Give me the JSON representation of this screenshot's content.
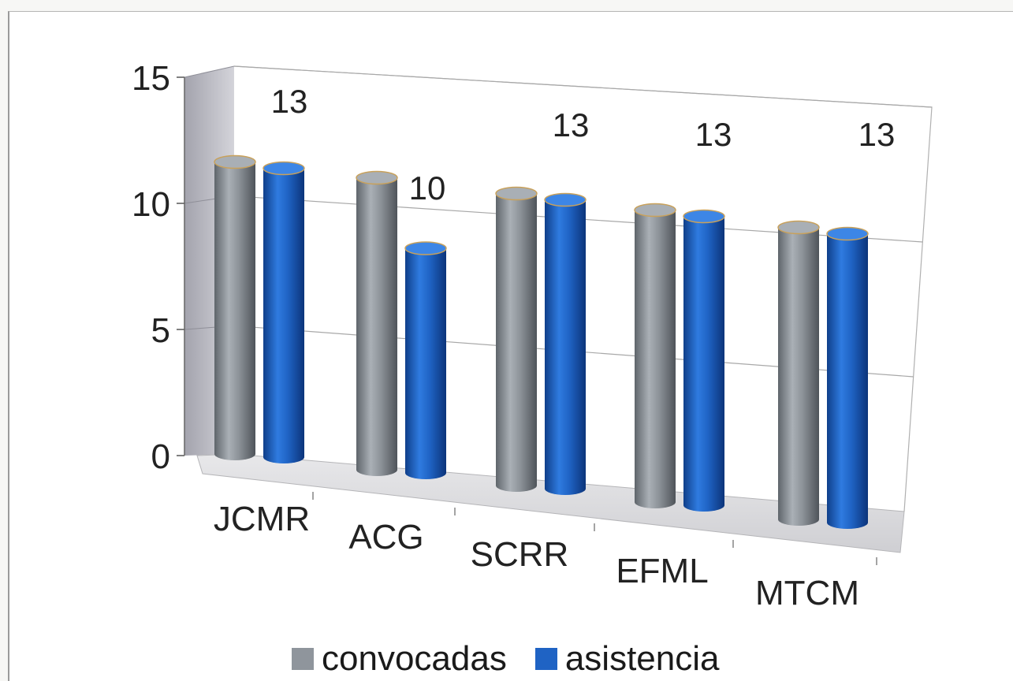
{
  "chart_data": {
    "type": "bar",
    "style": "3d-cylinder",
    "categories": [
      "JCMR",
      "ACG",
      "SCRR",
      "EFML",
      "MTCM"
    ],
    "series": [
      {
        "name": "convocadas",
        "color": "#8f959c",
        "values": [
          13,
          13,
          13,
          13,
          13
        ]
      },
      {
        "name": "asistencia",
        "color": "#1f63c4",
        "values": [
          13,
          10,
          13,
          13,
          13
        ]
      }
    ],
    "data_labels": [
      {
        "category": "JCMR",
        "series": "asistencia",
        "text": "13"
      },
      {
        "category": "ACG",
        "series": "asistencia",
        "text": "10"
      },
      {
        "category": "SCRR",
        "series": "asistencia",
        "text": "13"
      },
      {
        "category": "EFML",
        "series": "asistencia",
        "text": "13"
      },
      {
        "category": "MTCM",
        "series": "asistencia",
        "text": "13"
      }
    ],
    "y_ticks": [
      "0",
      "5",
      "10",
      "15"
    ],
    "ylim": [
      0,
      15
    ],
    "grid": true,
    "legend_position": "bottom"
  }
}
